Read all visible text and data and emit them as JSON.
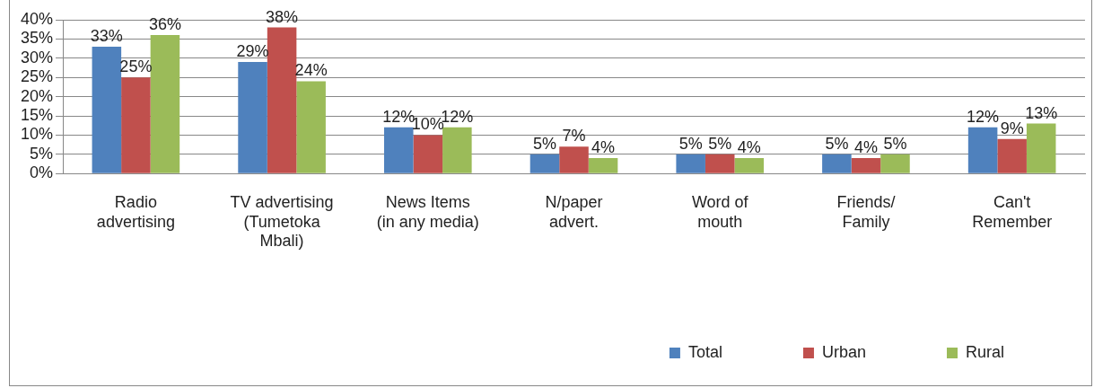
{
  "chart_data": {
    "type": "bar",
    "categories": [
      "Radio\nadvertising",
      "TV advertising\n(Tumetoka\nMbali)",
      "News Items\n(in any media)",
      "N/paper\nadvert.",
      "Word of\nmouth",
      "Friends/\nFamily",
      "Can't\nRemember"
    ],
    "series": [
      {
        "name": "Total",
        "color": "#4f81bd",
        "values": [
          33,
          29,
          12,
          5,
          5,
          5,
          12
        ],
        "value_labels": [
          "33%",
          "29%",
          "12%",
          "5%",
          "5%",
          "5%",
          "12%"
        ]
      },
      {
        "name": "Urban",
        "color": "#c0504d",
        "values": [
          25,
          38,
          10,
          7,
          5,
          4,
          9
        ],
        "value_labels": [
          "25%",
          "38%",
          "10%",
          "7%",
          "5%",
          "4%",
          "9%"
        ]
      },
      {
        "name": "Rural",
        "color": "#9bbb59",
        "values": [
          36,
          24,
          12,
          4,
          4,
          5,
          13
        ],
        "value_labels": [
          "36%",
          "24%",
          "12%",
          "4%",
          "4%",
          "5%",
          "13%"
        ]
      }
    ],
    "ylim": [
      0,
      40
    ],
    "yticks": [
      {
        "value": 0,
        "label": "0%"
      },
      {
        "value": 5,
        "label": "5%"
      },
      {
        "value": 10,
        "label": "10%"
      },
      {
        "value": 15,
        "label": "15%"
      },
      {
        "value": 20,
        "label": "20%"
      },
      {
        "value": 25,
        "label": "25%"
      },
      {
        "value": 30,
        "label": "30%"
      },
      {
        "value": 35,
        "label": "35%"
      },
      {
        "value": 40,
        "label": "40%"
      }
    ],
    "grid": "y",
    "legend": "bottom"
  }
}
